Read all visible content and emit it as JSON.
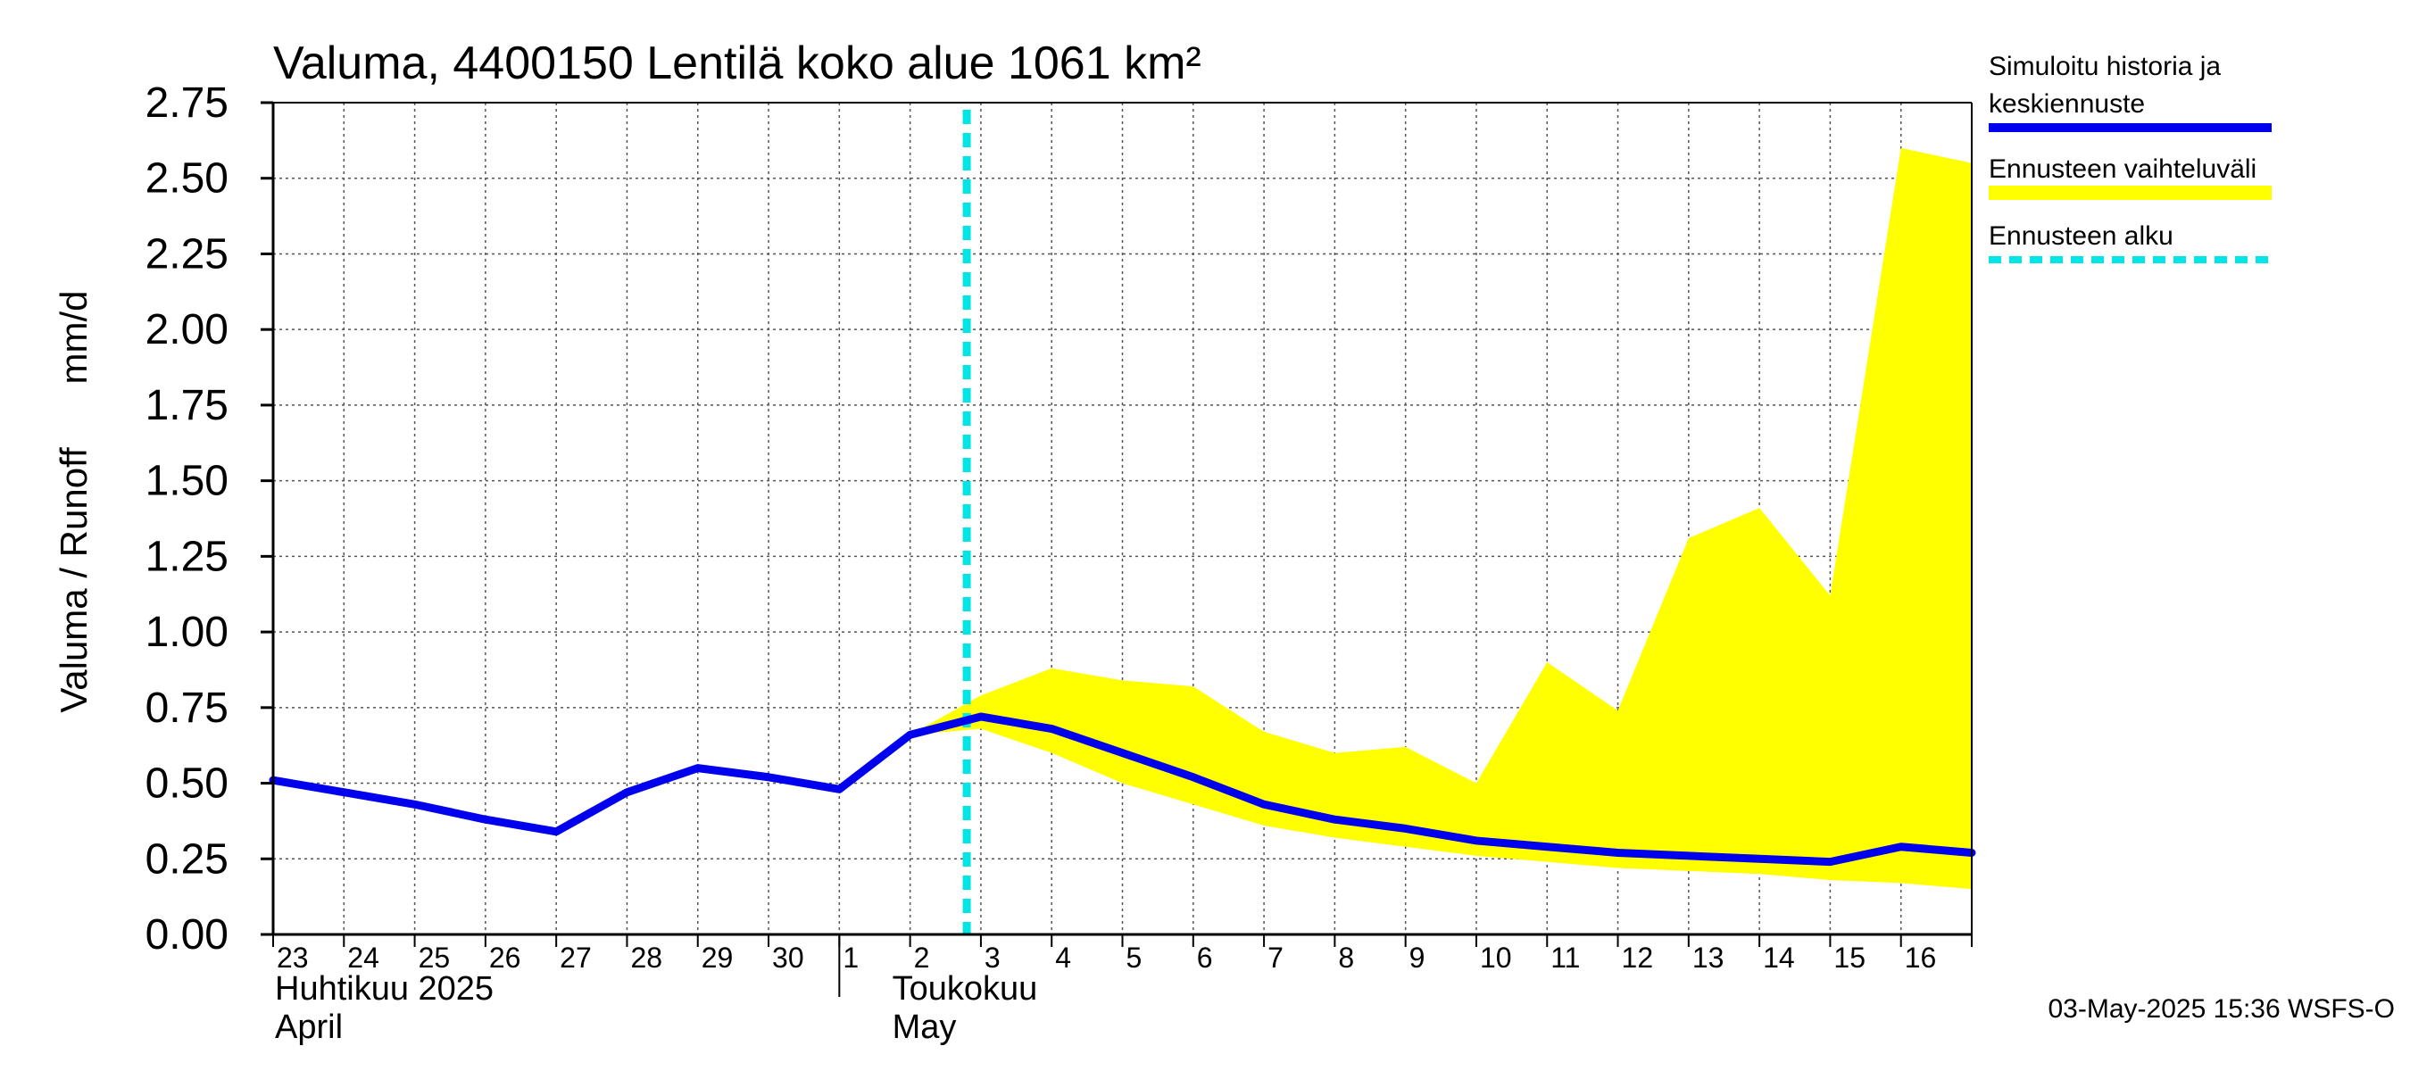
{
  "chart_data": {
    "type": "area",
    "title": "Valuma, 4400150 Lentilä koko alue 1061 km²",
    "ylabel_left": "Valuma / Runoff",
    "ylabel_unit": "mm/d",
    "ylim": [
      0,
      2.75
    ],
    "yticks": [
      "0.00",
      "0.25",
      "0.50",
      "0.75",
      "1.00",
      "1.25",
      "1.50",
      "1.75",
      "2.00",
      "2.25",
      "2.50",
      "2.75"
    ],
    "x_days": [
      "23",
      "24",
      "25",
      "26",
      "27",
      "28",
      "29",
      "30",
      "1",
      "2",
      "3",
      "4",
      "5",
      "6",
      "7",
      "8",
      "9",
      "10",
      "11",
      "12",
      "13",
      "14",
      "15",
      "16"
    ],
    "month_labels": [
      {
        "line1": "Huhtikuu  2025",
        "line2": "April"
      },
      {
        "line1": "Toukokuu",
        "line2": "May"
      }
    ],
    "grid": true,
    "legend_position": "right",
    "forecast_start_day_index": 9.8,
    "series": [
      {
        "name": "Simuloitu historia ja keskiennuste",
        "color": "#0000ee",
        "x": [
          0,
          1,
          2,
          3,
          4,
          5,
          6,
          7,
          8,
          9,
          10,
          11,
          12,
          13,
          14,
          15,
          16,
          17,
          18,
          19,
          20,
          21,
          22,
          23,
          24
        ],
        "values": [
          0.51,
          0.47,
          0.43,
          0.38,
          0.34,
          0.47,
          0.55,
          0.52,
          0.48,
          0.66,
          0.72,
          0.68,
          0.6,
          0.52,
          0.43,
          0.38,
          0.35,
          0.31,
          0.29,
          0.27,
          0.26,
          0.25,
          0.24,
          0.29,
          0.27
        ]
      },
      {
        "name": "Ennusteen vaihteluväli",
        "color": "#ffff00",
        "x": [
          9,
          10,
          11,
          12,
          13,
          14,
          15,
          16,
          17,
          18,
          19,
          20,
          21,
          22,
          23,
          24
        ],
        "upper": [
          0.66,
          0.79,
          0.88,
          0.84,
          0.82,
          0.67,
          0.6,
          0.62,
          0.5,
          0.9,
          0.74,
          1.31,
          1.41,
          1.12,
          2.6,
          2.55
        ],
        "lower": [
          0.66,
          0.68,
          0.6,
          0.5,
          0.43,
          0.36,
          0.32,
          0.29,
          0.26,
          0.24,
          0.22,
          0.21,
          0.2,
          0.18,
          0.17,
          0.15
        ]
      },
      {
        "name": "Ennusteen alku",
        "color": "#00e5e5",
        "style": "dashed"
      }
    ],
    "legend": [
      {
        "lines": [
          "Simuloitu historia ja",
          "keskiennuste"
        ],
        "color": "#0000ee",
        "style": "solid"
      },
      {
        "lines": [
          "Ennusteen vaihteluväli"
        ],
        "color": "#ffff00",
        "style": "solid"
      },
      {
        "lines": [
          "Ennusteen alku"
        ],
        "color": "#00e5e5",
        "style": "dashed"
      }
    ],
    "timestamp": "03-May-2025 15:36 WSFS-O"
  }
}
